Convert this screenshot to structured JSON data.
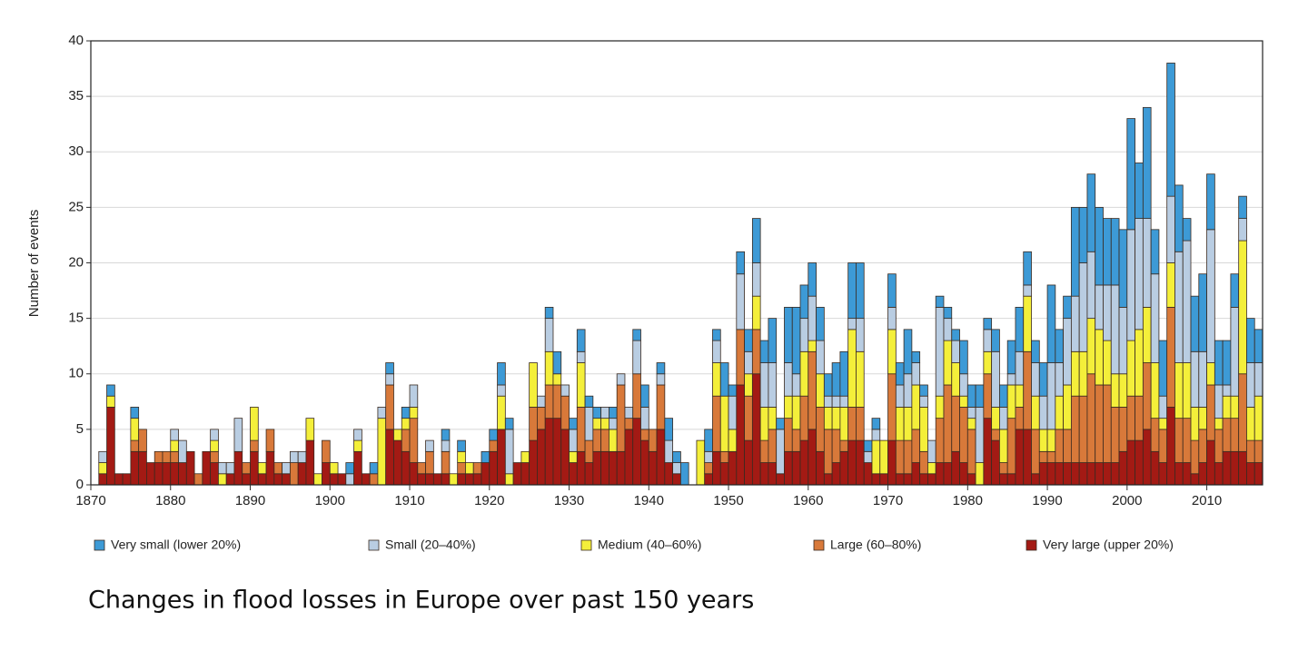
{
  "chart_data": {
    "type": "stacked_bar",
    "y_label": "Number of events",
    "caption": "Changes in flood losses in Europe over past 150 years",
    "xlim": [
      1870,
      2017
    ],
    "ylim": [
      0,
      40
    ],
    "xticks": [
      1870,
      1880,
      1890,
      1900,
      1910,
      1920,
      1930,
      1940,
      1950,
      1960,
      1970,
      1980,
      1990,
      2000,
      2010
    ],
    "yticks": [
      0,
      5,
      10,
      15,
      20,
      25,
      30,
      35,
      40
    ],
    "grid": true,
    "x": [
      1871,
      1872,
      1873,
      1874,
      1875,
      1876,
      1877,
      1878,
      1879,
      1880,
      1881,
      1882,
      1883,
      1884,
      1885,
      1886,
      1887,
      1888,
      1889,
      1890,
      1891,
      1892,
      1893,
      1894,
      1895,
      1896,
      1897,
      1898,
      1899,
      1900,
      1901,
      1902,
      1903,
      1904,
      1905,
      1906,
      1907,
      1908,
      1909,
      1910,
      1911,
      1912,
      1913,
      1914,
      1915,
      1916,
      1917,
      1918,
      1919,
      1920,
      1921,
      1922,
      1923,
      1924,
      1925,
      1926,
      1927,
      1928,
      1929,
      1930,
      1931,
      1932,
      1933,
      1934,
      1935,
      1936,
      1937,
      1938,
      1939,
      1940,
      1941,
      1942,
      1943,
      1944,
      1945,
      1946,
      1947,
      1948,
      1949,
      1950,
      1951,
      1952,
      1953,
      1954,
      1955,
      1956,
      1957,
      1958,
      1959,
      1960,
      1961,
      1962,
      1963,
      1964,
      1965,
      1966,
      1967,
      1968,
      1969,
      1970,
      1971,
      1972,
      1973,
      1974,
      1975,
      1976,
      1977,
      1978,
      1979,
      1980,
      1981,
      1982,
      1983,
      1984,
      1985,
      1986,
      1987,
      1988,
      1989,
      1990,
      1991,
      1992,
      1993,
      1994,
      1995,
      1996,
      1997,
      1998,
      1999,
      2000,
      2001,
      2002,
      2003,
      2004,
      2005,
      2006,
      2007,
      2008,
      2009,
      2010,
      2011,
      2012,
      2013,
      2014,
      2015,
      2016
    ],
    "series": [
      {
        "name": "Very small (lower 20%)",
        "color": "#3d9ad6",
        "values": [
          0,
          1,
          0,
          0,
          1,
          0,
          0,
          0,
          0,
          0,
          0,
          0,
          0,
          0,
          0,
          0,
          0,
          0,
          0,
          0,
          0,
          0,
          0,
          0,
          0,
          0,
          0,
          0,
          0,
          0,
          0,
          1,
          0,
          0,
          1,
          0,
          1,
          0,
          1,
          0,
          0,
          0,
          0,
          1,
          0,
          1,
          0,
          0,
          1,
          1,
          2,
          1,
          0,
          0,
          0,
          0,
          1,
          2,
          0,
          1,
          2,
          1,
          1,
          0,
          1,
          0,
          0,
          1,
          2,
          0,
          1,
          2,
          1,
          2,
          0,
          0,
          2,
          1,
          3,
          1,
          2,
          2,
          4,
          2,
          4,
          1,
          5,
          6,
          3,
          3,
          3,
          2,
          3,
          4,
          5,
          5,
          1,
          1,
          0,
          3,
          2,
          4,
          1,
          1,
          0,
          1,
          1,
          1,
          3,
          2,
          2,
          1,
          2,
          2,
          3,
          4,
          3,
          2,
          3,
          7,
          3,
          2,
          8,
          5,
          7,
          7,
          6,
          6,
          7,
          10,
          5,
          10,
          4,
          5,
          12,
          6,
          2,
          5,
          7,
          5,
          4,
          4,
          3,
          2,
          4,
          3
        ]
      },
      {
        "name": "Small (20–40%)",
        "color": "#b9cde2",
        "values": [
          1,
          0,
          0,
          0,
          0,
          0,
          0,
          0,
          0,
          1,
          2,
          0,
          0,
          0,
          1,
          1,
          1,
          3,
          0,
          0,
          0,
          0,
          0,
          1,
          1,
          1,
          0,
          0,
          0,
          0,
          0,
          1,
          1,
          0,
          0,
          1,
          1,
          0,
          0,
          2,
          0,
          1,
          0,
          1,
          0,
          0,
          0,
          0,
          0,
          0,
          1,
          4,
          0,
          0,
          0,
          1,
          3,
          0,
          1,
          2,
          1,
          3,
          0,
          1,
          1,
          1,
          1,
          3,
          2,
          0,
          1,
          2,
          1,
          0,
          0,
          0,
          1,
          2,
          0,
          3,
          5,
          2,
          3,
          4,
          4,
          4,
          3,
          2,
          3,
          4,
          3,
          1,
          1,
          1,
          1,
          3,
          1,
          1,
          0,
          2,
          2,
          3,
          2,
          1,
          2,
          8,
          2,
          2,
          2,
          1,
          5,
          2,
          5,
          2,
          1,
          3,
          1,
          3,
          3,
          6,
          3,
          6,
          5,
          8,
          6,
          4,
          5,
          8,
          6,
          10,
          10,
          8,
          8,
          2,
          6,
          10,
          11,
          5,
          5,
          12,
          3,
          1,
          8,
          2,
          4,
          3
        ]
      },
      {
        "name": "Medium (40–60%)",
        "color": "#f4ef3a",
        "values": [
          1,
          1,
          0,
          0,
          2,
          0,
          0,
          0,
          0,
          1,
          0,
          0,
          0,
          0,
          1,
          1,
          0,
          0,
          0,
          3,
          1,
          0,
          0,
          0,
          0,
          0,
          2,
          1,
          0,
          1,
          0,
          0,
          1,
          0,
          0,
          6,
          0,
          1,
          1,
          1,
          0,
          0,
          0,
          0,
          1,
          1,
          1,
          0,
          0,
          0,
          3,
          1,
          0,
          1,
          4,
          0,
          3,
          1,
          0,
          1,
          4,
          0,
          1,
          1,
          2,
          0,
          0,
          0,
          0,
          0,
          0,
          0,
          0,
          0,
          0,
          4,
          0,
          3,
          5,
          2,
          0,
          2,
          3,
          3,
          2,
          0,
          2,
          3,
          4,
          1,
          3,
          2,
          2,
          3,
          7,
          5,
          0,
          3,
          3,
          4,
          3,
          3,
          4,
          4,
          1,
          2,
          4,
          3,
          1,
          1,
          2,
          2,
          2,
          3,
          3,
          2,
          5,
          3,
          2,
          2,
          3,
          4,
          4,
          4,
          5,
          5,
          4,
          3,
          3,
          5,
          6,
          5,
          5,
          1,
          4,
          5,
          5,
          3,
          2,
          2,
          1,
          2,
          2,
          12,
          3,
          4
        ]
      },
      {
        "name": "Large (60–80%)",
        "color": "#d8793a",
        "values": [
          0,
          0,
          0,
          0,
          1,
          2,
          0,
          1,
          1,
          1,
          0,
          0,
          1,
          0,
          1,
          0,
          0,
          0,
          1,
          1,
          0,
          2,
          1,
          0,
          2,
          0,
          0,
          0,
          2,
          0,
          0,
          0,
          0,
          0,
          1,
          0,
          4,
          0,
          2,
          4,
          1,
          2,
          0,
          2,
          0,
          1,
          0,
          1,
          0,
          1,
          0,
          0,
          0,
          0,
          3,
          2,
          3,
          3,
          3,
          0,
          4,
          2,
          2,
          2,
          0,
          6,
          1,
          4,
          1,
          2,
          4,
          0,
          0,
          0,
          0,
          0,
          1,
          5,
          1,
          0,
          5,
          4,
          4,
          2,
          3,
          0,
          3,
          2,
          4,
          7,
          4,
          4,
          3,
          1,
          3,
          3,
          0,
          0,
          0,
          6,
          3,
          3,
          3,
          2,
          0,
          4,
          7,
          5,
          5,
          4,
          0,
          4,
          1,
          1,
          5,
          2,
          7,
          4,
          1,
          1,
          3,
          3,
          6,
          6,
          8,
          7,
          7,
          5,
          4,
          4,
          4,
          6,
          3,
          3,
          9,
          4,
          4,
          3,
          3,
          5,
          3,
          3,
          3,
          7,
          2,
          2
        ]
      },
      {
        "name": "Very large (upper 20%)",
        "color": "#a31a14",
        "values": [
          1,
          7,
          1,
          1,
          3,
          3,
          2,
          2,
          2,
          2,
          2,
          3,
          0,
          3,
          2,
          0,
          1,
          3,
          1,
          3,
          1,
          3,
          1,
          1,
          0,
          2,
          4,
          0,
          2,
          1,
          1,
          0,
          3,
          1,
          0,
          0,
          5,
          4,
          3,
          2,
          1,
          1,
          1,
          1,
          0,
          1,
          1,
          1,
          2,
          3,
          5,
          0,
          2,
          2,
          4,
          5,
          6,
          6,
          5,
          2,
          3,
          2,
          3,
          3,
          3,
          3,
          5,
          6,
          4,
          3,
          5,
          2,
          1,
          0,
          0,
          0,
          1,
          3,
          2,
          3,
          9,
          4,
          10,
          2,
          2,
          1,
          3,
          3,
          4,
          5,
          3,
          1,
          2,
          3,
          4,
          4,
          2,
          1,
          1,
          4,
          1,
          1,
          2,
          1,
          1,
          2,
          2,
          3,
          2,
          1,
          0,
          6,
          4,
          1,
          1,
          5,
          5,
          1,
          2,
          2,
          2,
          2,
          2,
          2,
          2,
          2,
          2,
          2,
          3,
          4,
          4,
          5,
          3,
          2,
          7,
          2,
          2,
          1,
          2,
          4,
          2,
          3,
          3,
          3,
          2,
          2
        ]
      }
    ]
  }
}
